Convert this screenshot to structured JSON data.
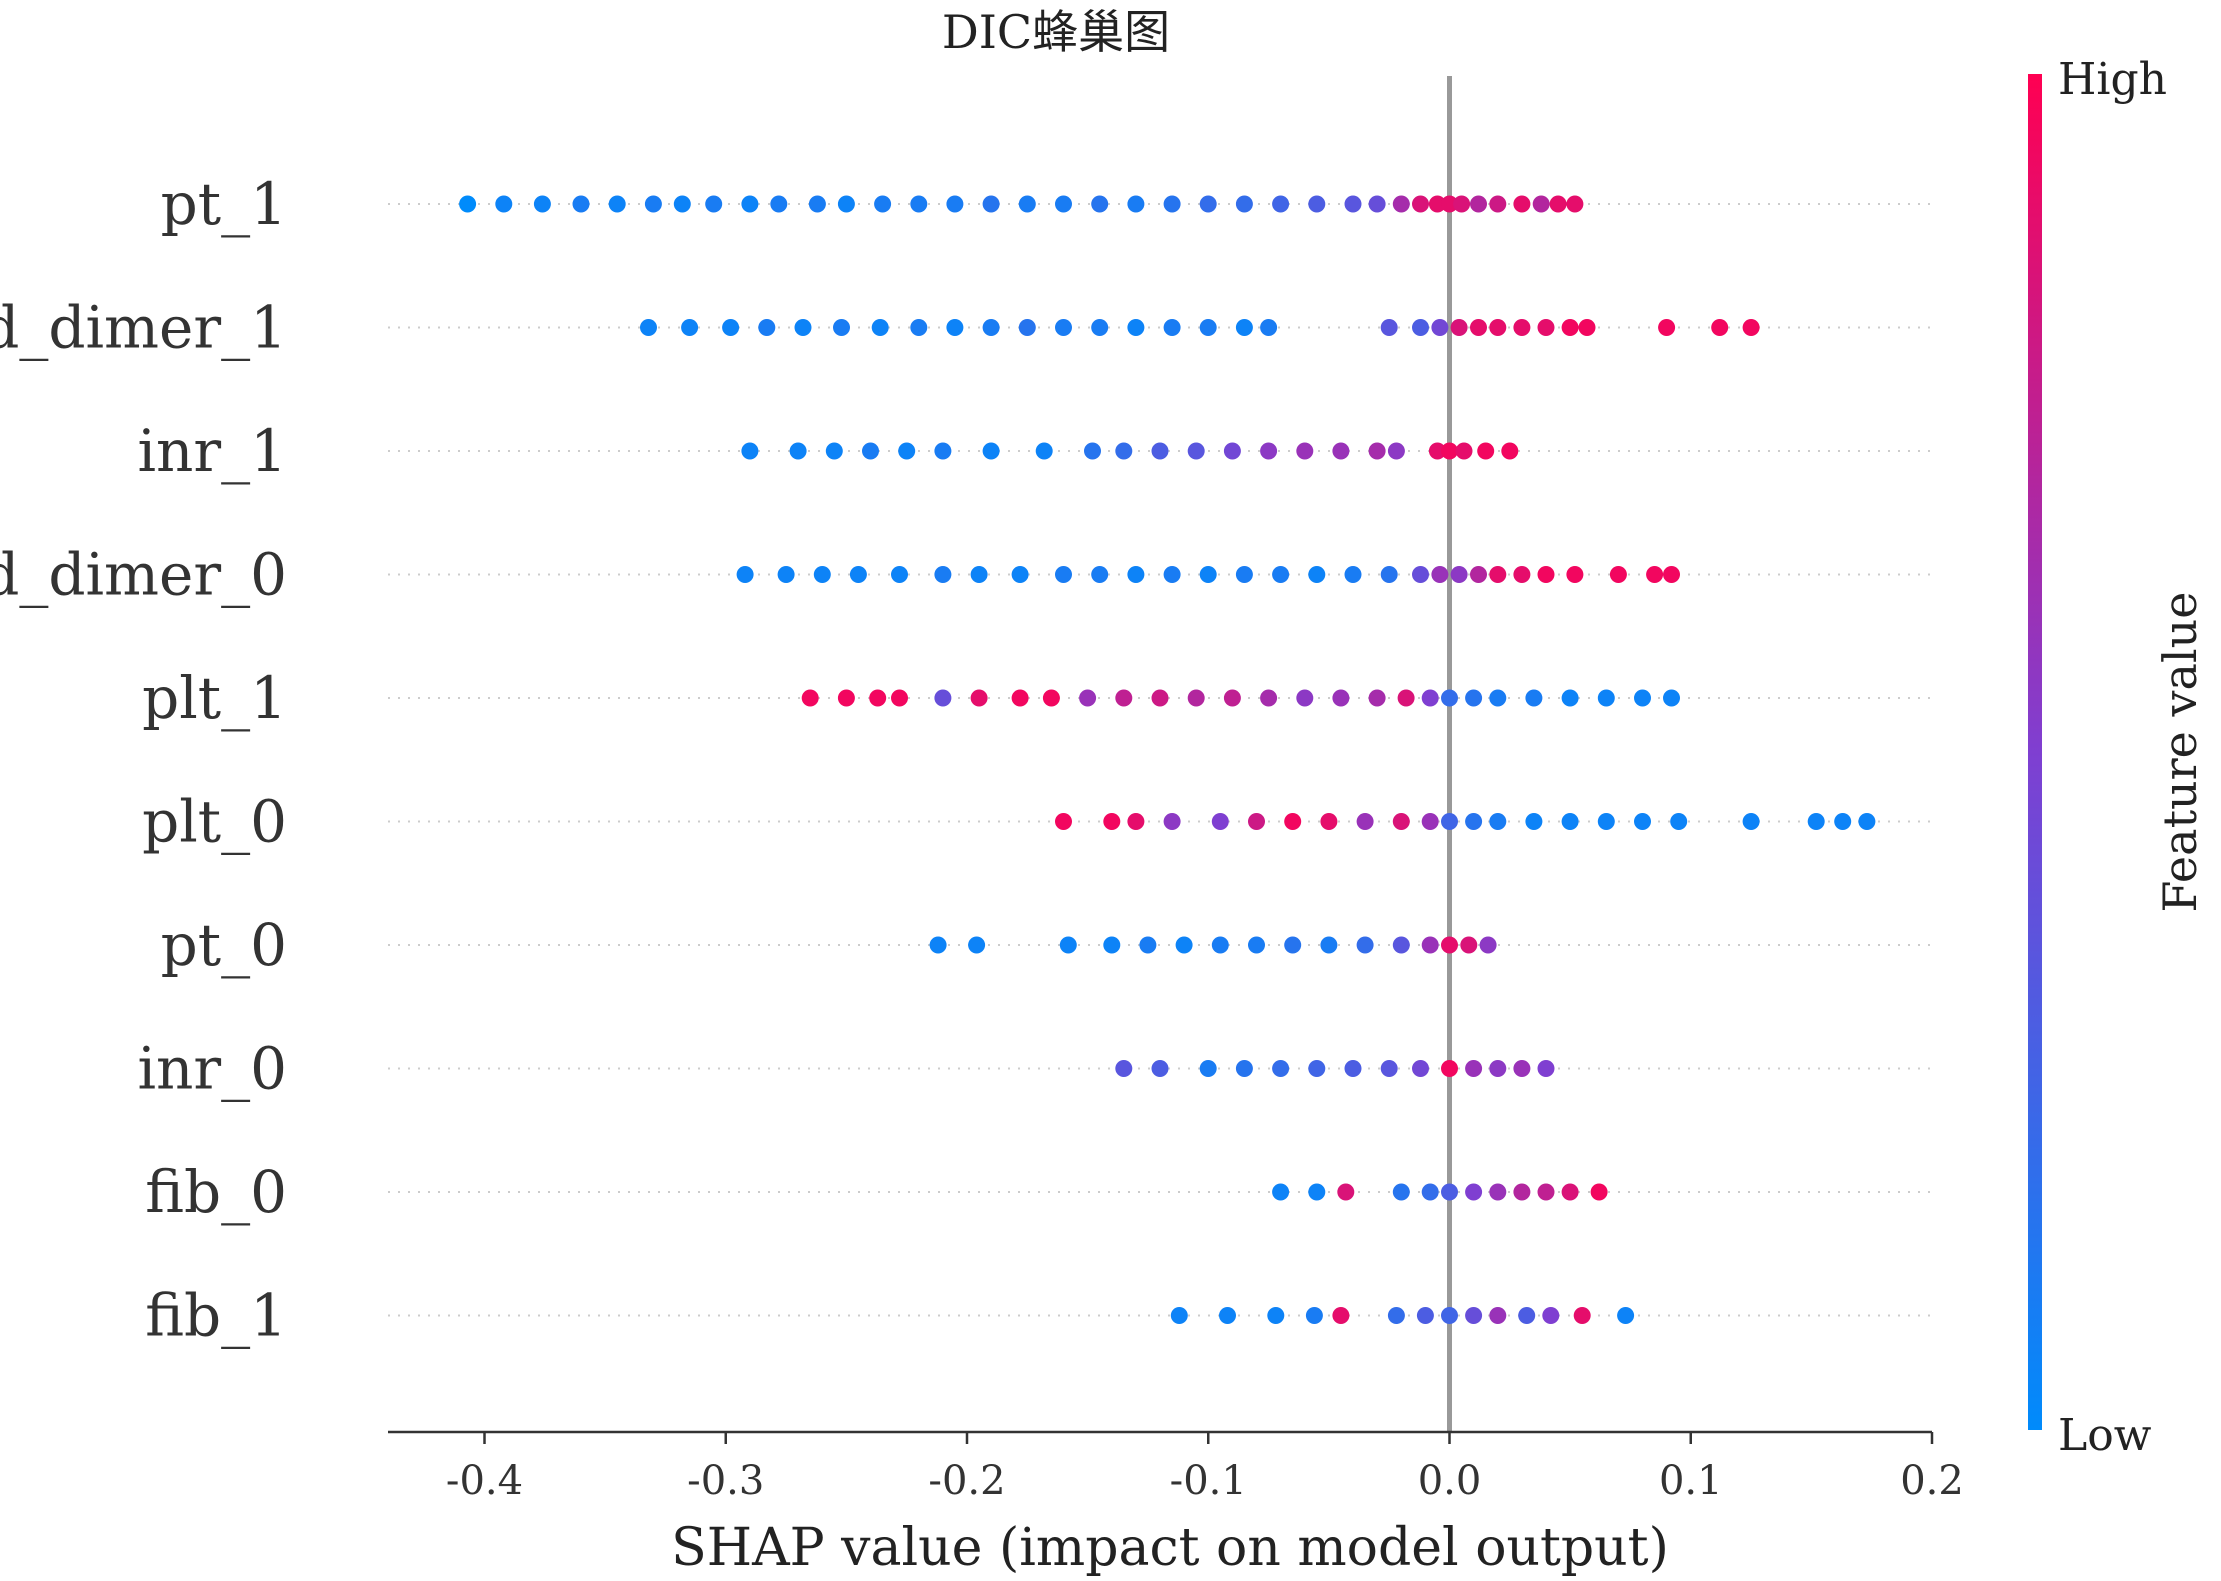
{
  "chart_data": {
    "type": "scatter",
    "subtype": "shap-beeswarm",
    "title": "DIC蜂巢图",
    "xlabel": "SHAP value (impact on model output)",
    "xlim": [
      -0.44,
      0.2
    ],
    "xticks": [
      -0.4,
      -0.3,
      -0.2,
      -0.1,
      0.0,
      0.1,
      0.2
    ],
    "xtick_labels": [
      "-0.4",
      "-0.3",
      "-0.2",
      "-0.1",
      "0.0",
      "0.1",
      "0.2"
    ],
    "zero_line": true,
    "features": [
      "pt_1",
      "d_dimer_1",
      "inr_1",
      "d_dimer_0",
      "plt_1",
      "plt_0",
      "pt_0",
      "inr_0",
      "fib_0",
      "fib_1"
    ],
    "series": [
      {
        "feature": "pt_1",
        "points": [
          {
            "x": -0.407,
            "v": 0.0
          },
          {
            "x": -0.392,
            "v": 0.05
          },
          {
            "x": -0.376,
            "v": 0.05
          },
          {
            "x": -0.36,
            "v": 0.1
          },
          {
            "x": -0.345,
            "v": 0.05
          },
          {
            "x": -0.33,
            "v": 0.1
          },
          {
            "x": -0.318,
            "v": 0.05
          },
          {
            "x": -0.305,
            "v": 0.1
          },
          {
            "x": -0.29,
            "v": 0.05
          },
          {
            "x": -0.278,
            "v": 0.1
          },
          {
            "x": -0.262,
            "v": 0.1
          },
          {
            "x": -0.25,
            "v": 0.05
          },
          {
            "x": -0.235,
            "v": 0.1
          },
          {
            "x": -0.22,
            "v": 0.1
          },
          {
            "x": -0.205,
            "v": 0.1
          },
          {
            "x": -0.19,
            "v": 0.15
          },
          {
            "x": -0.175,
            "v": 0.1
          },
          {
            "x": -0.16,
            "v": 0.1
          },
          {
            "x": -0.145,
            "v": 0.15
          },
          {
            "x": -0.13,
            "v": 0.1
          },
          {
            "x": -0.115,
            "v": 0.15
          },
          {
            "x": -0.1,
            "v": 0.2
          },
          {
            "x": -0.085,
            "v": 0.2
          },
          {
            "x": -0.07,
            "v": 0.25
          },
          {
            "x": -0.055,
            "v": 0.3
          },
          {
            "x": -0.04,
            "v": 0.35
          },
          {
            "x": -0.03,
            "v": 0.4
          },
          {
            "x": -0.02,
            "v": 0.65
          },
          {
            "x": -0.012,
            "v": 0.85
          },
          {
            "x": -0.005,
            "v": 0.9
          },
          {
            "x": 0.0,
            "v": 0.9
          },
          {
            "x": 0.005,
            "v": 0.85
          },
          {
            "x": 0.012,
            "v": 0.7
          },
          {
            "x": 0.02,
            "v": 0.8
          },
          {
            "x": 0.03,
            "v": 0.9
          },
          {
            "x": 0.038,
            "v": 0.7
          },
          {
            "x": 0.045,
            "v": 0.9
          },
          {
            "x": 0.052,
            "v": 0.9
          }
        ]
      },
      {
        "feature": "d_dimer_1",
        "points": [
          {
            "x": -0.332,
            "v": 0.05
          },
          {
            "x": -0.315,
            "v": 0.05
          },
          {
            "x": -0.298,
            "v": 0.05
          },
          {
            "x": -0.283,
            "v": 0.1
          },
          {
            "x": -0.268,
            "v": 0.05
          },
          {
            "x": -0.252,
            "v": 0.1
          },
          {
            "x": -0.236,
            "v": 0.05
          },
          {
            "x": -0.22,
            "v": 0.1
          },
          {
            "x": -0.205,
            "v": 0.05
          },
          {
            "x": -0.19,
            "v": 0.1
          },
          {
            "x": -0.175,
            "v": 0.15
          },
          {
            "x": -0.16,
            "v": 0.1
          },
          {
            "x": -0.145,
            "v": 0.1
          },
          {
            "x": -0.13,
            "v": 0.05
          },
          {
            "x": -0.115,
            "v": 0.1
          },
          {
            "x": -0.1,
            "v": 0.1
          },
          {
            "x": -0.085,
            "v": 0.05
          },
          {
            "x": -0.075,
            "v": 0.1
          },
          {
            "x": -0.025,
            "v": 0.35
          },
          {
            "x": -0.012,
            "v": 0.3
          },
          {
            "x": -0.004,
            "v": 0.45
          },
          {
            "x": 0.004,
            "v": 0.85
          },
          {
            "x": 0.012,
            "v": 0.9
          },
          {
            "x": 0.02,
            "v": 0.9
          },
          {
            "x": 0.03,
            "v": 0.9
          },
          {
            "x": 0.04,
            "v": 0.9
          },
          {
            "x": 0.05,
            "v": 0.95
          },
          {
            "x": 0.057,
            "v": 0.95
          },
          {
            "x": 0.09,
            "v": 0.95
          },
          {
            "x": 0.112,
            "v": 0.95
          },
          {
            "x": 0.125,
            "v": 0.95
          }
        ]
      },
      {
        "feature": "inr_1",
        "points": [
          {
            "x": -0.29,
            "v": 0.05
          },
          {
            "x": -0.27,
            "v": 0.05
          },
          {
            "x": -0.255,
            "v": 0.05
          },
          {
            "x": -0.24,
            "v": 0.1
          },
          {
            "x": -0.225,
            "v": 0.05
          },
          {
            "x": -0.21,
            "v": 0.1
          },
          {
            "x": -0.19,
            "v": 0.05
          },
          {
            "x": -0.168,
            "v": 0.05
          },
          {
            "x": -0.148,
            "v": 0.15
          },
          {
            "x": -0.135,
            "v": 0.2
          },
          {
            "x": -0.12,
            "v": 0.3
          },
          {
            "x": -0.105,
            "v": 0.35
          },
          {
            "x": -0.09,
            "v": 0.45
          },
          {
            "x": -0.075,
            "v": 0.55
          },
          {
            "x": -0.06,
            "v": 0.6
          },
          {
            "x": -0.045,
            "v": 0.6
          },
          {
            "x": -0.03,
            "v": 0.65
          },
          {
            "x": -0.022,
            "v": 0.55
          },
          {
            "x": -0.005,
            "v": 0.9
          },
          {
            "x": 0.0,
            "v": 0.95
          },
          {
            "x": 0.006,
            "v": 0.9
          },
          {
            "x": 0.015,
            "v": 0.95
          },
          {
            "x": 0.025,
            "v": 0.95
          }
        ]
      },
      {
        "feature": "d_dimer_0",
        "points": [
          {
            "x": -0.292,
            "v": 0.05
          },
          {
            "x": -0.275,
            "v": 0.05
          },
          {
            "x": -0.26,
            "v": 0.05
          },
          {
            "x": -0.245,
            "v": 0.05
          },
          {
            "x": -0.228,
            "v": 0.05
          },
          {
            "x": -0.21,
            "v": 0.1
          },
          {
            "x": -0.195,
            "v": 0.05
          },
          {
            "x": -0.178,
            "v": 0.05
          },
          {
            "x": -0.16,
            "v": 0.1
          },
          {
            "x": -0.145,
            "v": 0.1
          },
          {
            "x": -0.13,
            "v": 0.05
          },
          {
            "x": -0.115,
            "v": 0.1
          },
          {
            "x": -0.1,
            "v": 0.05
          },
          {
            "x": -0.085,
            "v": 0.1
          },
          {
            "x": -0.07,
            "v": 0.1
          },
          {
            "x": -0.055,
            "v": 0.05
          },
          {
            "x": -0.04,
            "v": 0.1
          },
          {
            "x": -0.025,
            "v": 0.15
          },
          {
            "x": -0.012,
            "v": 0.4
          },
          {
            "x": -0.004,
            "v": 0.6
          },
          {
            "x": 0.004,
            "v": 0.55
          },
          {
            "x": 0.012,
            "v": 0.7
          },
          {
            "x": 0.02,
            "v": 0.9
          },
          {
            "x": 0.03,
            "v": 0.9
          },
          {
            "x": 0.04,
            "v": 0.95
          },
          {
            "x": 0.052,
            "v": 0.95
          },
          {
            "x": 0.07,
            "v": 0.95
          },
          {
            "x": 0.085,
            "v": 0.95
          },
          {
            "x": 0.092,
            "v": 0.95
          }
        ]
      },
      {
        "feature": "plt_1",
        "points": [
          {
            "x": -0.265,
            "v": 0.95
          },
          {
            "x": -0.25,
            "v": 0.95
          },
          {
            "x": -0.237,
            "v": 0.95
          },
          {
            "x": -0.228,
            "v": 0.95
          },
          {
            "x": -0.21,
            "v": 0.4
          },
          {
            "x": -0.195,
            "v": 0.9
          },
          {
            "x": -0.178,
            "v": 0.95
          },
          {
            "x": -0.165,
            "v": 0.95
          },
          {
            "x": -0.15,
            "v": 0.6
          },
          {
            "x": -0.135,
            "v": 0.75
          },
          {
            "x": -0.12,
            "v": 0.8
          },
          {
            "x": -0.105,
            "v": 0.7
          },
          {
            "x": -0.09,
            "v": 0.75
          },
          {
            "x": -0.075,
            "v": 0.65
          },
          {
            "x": -0.06,
            "v": 0.55
          },
          {
            "x": -0.045,
            "v": 0.6
          },
          {
            "x": -0.03,
            "v": 0.65
          },
          {
            "x": -0.018,
            "v": 0.85
          },
          {
            "x": -0.008,
            "v": 0.5
          },
          {
            "x": 0.0,
            "v": 0.2
          },
          {
            "x": 0.01,
            "v": 0.15
          },
          {
            "x": 0.02,
            "v": 0.1
          },
          {
            "x": 0.035,
            "v": 0.1
          },
          {
            "x": 0.05,
            "v": 0.05
          },
          {
            "x": 0.065,
            "v": 0.05
          },
          {
            "x": 0.08,
            "v": 0.05
          },
          {
            "x": 0.092,
            "v": 0.05
          }
        ]
      },
      {
        "feature": "plt_0",
        "points": [
          {
            "x": -0.16,
            "v": 0.95
          },
          {
            "x": -0.14,
            "v": 0.95
          },
          {
            "x": -0.13,
            "v": 0.9
          },
          {
            "x": -0.115,
            "v": 0.55
          },
          {
            "x": -0.095,
            "v": 0.5
          },
          {
            "x": -0.08,
            "v": 0.8
          },
          {
            "x": -0.065,
            "v": 0.95
          },
          {
            "x": -0.05,
            "v": 0.9
          },
          {
            "x": -0.035,
            "v": 0.6
          },
          {
            "x": -0.02,
            "v": 0.85
          },
          {
            "x": -0.008,
            "v": 0.6
          },
          {
            "x": 0.0,
            "v": 0.25
          },
          {
            "x": 0.01,
            "v": 0.15
          },
          {
            "x": 0.02,
            "v": 0.1
          },
          {
            "x": 0.035,
            "v": 0.05
          },
          {
            "x": 0.05,
            "v": 0.05
          },
          {
            "x": 0.065,
            "v": 0.05
          },
          {
            "x": 0.08,
            "v": 0.05
          },
          {
            "x": 0.095,
            "v": 0.05
          },
          {
            "x": 0.125,
            "v": 0.05
          },
          {
            "x": 0.152,
            "v": 0.05
          },
          {
            "x": 0.163,
            "v": 0.05
          },
          {
            "x": 0.173,
            "v": 0.05
          }
        ]
      },
      {
        "feature": "pt_0",
        "points": [
          {
            "x": -0.212,
            "v": 0.05
          },
          {
            "x": -0.196,
            "v": 0.05
          },
          {
            "x": -0.158,
            "v": 0.05
          },
          {
            "x": -0.14,
            "v": 0.05
          },
          {
            "x": -0.125,
            "v": 0.1
          },
          {
            "x": -0.11,
            "v": 0.05
          },
          {
            "x": -0.095,
            "v": 0.1
          },
          {
            "x": -0.08,
            "v": 0.1
          },
          {
            "x": -0.065,
            "v": 0.15
          },
          {
            "x": -0.05,
            "v": 0.1
          },
          {
            "x": -0.035,
            "v": 0.2
          },
          {
            "x": -0.02,
            "v": 0.35
          },
          {
            "x": -0.008,
            "v": 0.6
          },
          {
            "x": 0.0,
            "v": 0.9
          },
          {
            "x": 0.008,
            "v": 0.85
          },
          {
            "x": 0.016,
            "v": 0.55
          }
        ]
      },
      {
        "feature": "inr_0",
        "points": [
          {
            "x": -0.135,
            "v": 0.35
          },
          {
            "x": -0.12,
            "v": 0.3
          },
          {
            "x": -0.1,
            "v": 0.1
          },
          {
            "x": -0.085,
            "v": 0.15
          },
          {
            "x": -0.07,
            "v": 0.2
          },
          {
            "x": -0.055,
            "v": 0.25
          },
          {
            "x": -0.04,
            "v": 0.3
          },
          {
            "x": -0.025,
            "v": 0.35
          },
          {
            "x": -0.012,
            "v": 0.45
          },
          {
            "x": 0.0,
            "v": 0.95
          },
          {
            "x": 0.01,
            "v": 0.6
          },
          {
            "x": 0.02,
            "v": 0.55
          },
          {
            "x": 0.03,
            "v": 0.6
          },
          {
            "x": 0.04,
            "v": 0.5
          }
        ]
      },
      {
        "feature": "fib_0",
        "points": [
          {
            "x": -0.07,
            "v": 0.05
          },
          {
            "x": -0.055,
            "v": 0.05
          },
          {
            "x": -0.043,
            "v": 0.85
          },
          {
            "x": -0.02,
            "v": 0.15
          },
          {
            "x": -0.008,
            "v": 0.2
          },
          {
            "x": 0.0,
            "v": 0.3
          },
          {
            "x": 0.01,
            "v": 0.5
          },
          {
            "x": 0.02,
            "v": 0.6
          },
          {
            "x": 0.03,
            "v": 0.7
          },
          {
            "x": 0.04,
            "v": 0.75
          },
          {
            "x": 0.05,
            "v": 0.85
          },
          {
            "x": 0.062,
            "v": 0.95
          }
        ]
      },
      {
        "feature": "fib_1",
        "points": [
          {
            "x": -0.112,
            "v": 0.05
          },
          {
            "x": -0.092,
            "v": 0.05
          },
          {
            "x": -0.072,
            "v": 0.05
          },
          {
            "x": -0.056,
            "v": 0.1
          },
          {
            "x": -0.045,
            "v": 0.9
          },
          {
            "x": -0.022,
            "v": 0.2
          },
          {
            "x": -0.01,
            "v": 0.3
          },
          {
            "x": 0.0,
            "v": 0.25
          },
          {
            "x": 0.01,
            "v": 0.4
          },
          {
            "x": 0.02,
            "v": 0.6
          },
          {
            "x": 0.032,
            "v": 0.3
          },
          {
            "x": 0.042,
            "v": 0.5
          },
          {
            "x": 0.055,
            "v": 0.9
          },
          {
            "x": 0.073,
            "v": 0.05
          }
        ]
      }
    ],
    "colorbar": {
      "title": "Feature value",
      "high_label": "High",
      "low_label": "Low",
      "high_color": "#ff0052",
      "mid_color": "#7f3fd1",
      "low_color": "#008bfb"
    },
    "colors": {
      "zero_line": "#999999",
      "row_guides": "#cccccc",
      "axis": "#333333"
    }
  }
}
